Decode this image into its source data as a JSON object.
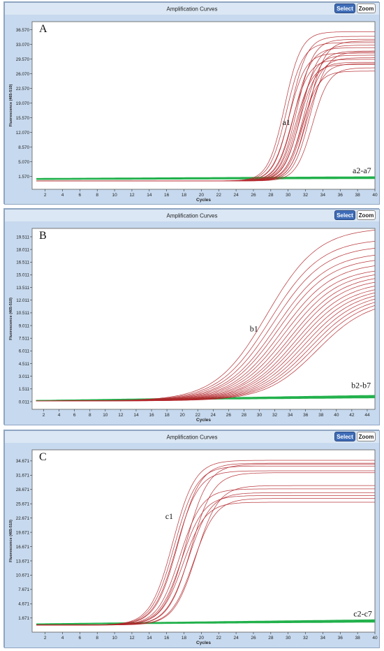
{
  "chart_data": [
    {
      "type": "line",
      "panel_label": "A",
      "title": "Amplification Curves",
      "xlabel": "Cycles",
      "ylabel": "Fluorescence (465-510)",
      "buttons": {
        "select": "Select",
        "zoom": "Zoom"
      },
      "xlim": [
        0.5,
        40
      ],
      "ylim": [
        -1.5,
        38.5
      ],
      "x_ticks": [
        2,
        4,
        6,
        8,
        10,
        12,
        14,
        16,
        18,
        20,
        22,
        24,
        26,
        28,
        30,
        32,
        34,
        36,
        38,
        40
      ],
      "y_ticks": [
        "1.570",
        "5.070",
        "8.570",
        "12.070",
        "15.570",
        "19.070",
        "22.570",
        "26.070",
        "29.570",
        "33.070",
        "36.570"
      ],
      "baseline_y": 0.5,
      "grid": false,
      "positive_label": "a1",
      "positive_label_at": [
        29.8,
        13.8
      ],
      "negative_label": "a2-a7",
      "negative_label_at": [
        38.5,
        2.3
      ],
      "positive_series": {
        "midpoints": [
          29.6,
          29.8,
          30.1,
          30.3,
          30.5,
          30.7,
          30.9,
          31.0,
          31.2,
          31.3,
          31.5,
          31.6,
          31.8,
          31.9,
          32.1,
          32.3,
          32.5,
          32.8
        ],
        "plateaus": [
          35.6,
          33.0,
          30.5,
          34.5,
          29.0,
          31.8,
          27.8,
          33.8,
          30.0,
          28.3,
          32.4,
          26.2,
          31.0,
          29.4,
          28.0,
          33.4,
          30.8,
          27.0
        ],
        "slope": 1.05
      },
      "negative_series": {
        "count": 6,
        "start": 0.6,
        "end": 1.0
      }
    },
    {
      "type": "line",
      "panel_label": "B",
      "title": "Amplification Curves",
      "xlabel": "Cycles",
      "ylabel": "Fluorescence (465-510)",
      "buttons": {
        "select": "Select",
        "zoom": "Zoom"
      },
      "xlim": [
        0.5,
        45
      ],
      "ylim": [
        -0.9,
        20.5
      ],
      "x_ticks": [
        2,
        4,
        6,
        8,
        10,
        12,
        14,
        16,
        18,
        20,
        22,
        24,
        26,
        28,
        30,
        32,
        34,
        36,
        38,
        40,
        42,
        44
      ],
      "y_ticks": [
        "0.011",
        "1.511",
        "3.011",
        "4.511",
        "6.011",
        "7.511",
        "9.011",
        "10.511",
        "12.011",
        "13.511",
        "15.011",
        "16.511",
        "18.011",
        "19.511"
      ],
      "baseline_y": 0.1,
      "grid": false,
      "positive_label": "b1",
      "positive_label_at": [
        29.3,
        8.3
      ],
      "negative_label": "b2-b7",
      "negative_label_at": [
        43.2,
        1.6
      ],
      "positive_series": {
        "midpoints": [
          31.0,
          31.4,
          31.8,
          32.2,
          32.5,
          32.9,
          33.2,
          33.6,
          34.0,
          34.3,
          34.7,
          35.0,
          35.4,
          35.8,
          36.2,
          36.6,
          37.0,
          37.5
        ],
        "plateaus": [
          20.5,
          19.2,
          18.4,
          17.6,
          17.0,
          16.4,
          15.8,
          15.4,
          15.0,
          14.6,
          14.2,
          13.8,
          13.5,
          13.2,
          12.9,
          12.6,
          12.3,
          12.0
        ],
        "slope": 0.3
      },
      "negative_series": {
        "count": 6,
        "start": 0.05,
        "end": 0.65
      }
    },
    {
      "type": "line",
      "panel_label": "C",
      "title": "Amplification Curves",
      "xlabel": "Cycles",
      "ylabel": "Fluorescence (465-510)",
      "buttons": {
        "select": "Select",
        "zoom": "Zoom"
      },
      "xlim": [
        0.5,
        40
      ],
      "ylim": [
        -1.3,
        37.0
      ],
      "x_ticks": [
        2,
        4,
        6,
        8,
        10,
        12,
        14,
        16,
        18,
        20,
        22,
        24,
        26,
        28,
        30,
        32,
        34,
        36,
        38,
        40
      ],
      "y_ticks": [
        "1.671",
        "4.671",
        "7.671",
        "10.671",
        "13.671",
        "16.671",
        "19.671",
        "22.671",
        "25.671",
        "28.671",
        "31.671",
        "34.671"
      ],
      "baseline_y": 0.2,
      "grid": false,
      "positive_label": "c1",
      "positive_label_at": [
        16.3,
        22.5
      ],
      "negative_label": "c2-c7",
      "negative_label_at": [
        38.6,
        2.0
      ],
      "positive_series": {
        "midpoints": [
          16.7,
          16.9,
          17.1,
          17.3,
          17.5,
          17.7,
          17.9,
          18.2,
          18.5,
          18.8,
          19.1,
          19.4
        ],
        "plateaus": [
          34.6,
          33.4,
          32.4,
          34.0,
          28.6,
          27.2,
          25.8,
          33.8,
          27.8,
          32.0,
          26.6,
          29.3
        ],
        "slope": 0.78
      },
      "negative_series": {
        "count": 6,
        "start": 0.25,
        "end": 1.1
      }
    }
  ]
}
